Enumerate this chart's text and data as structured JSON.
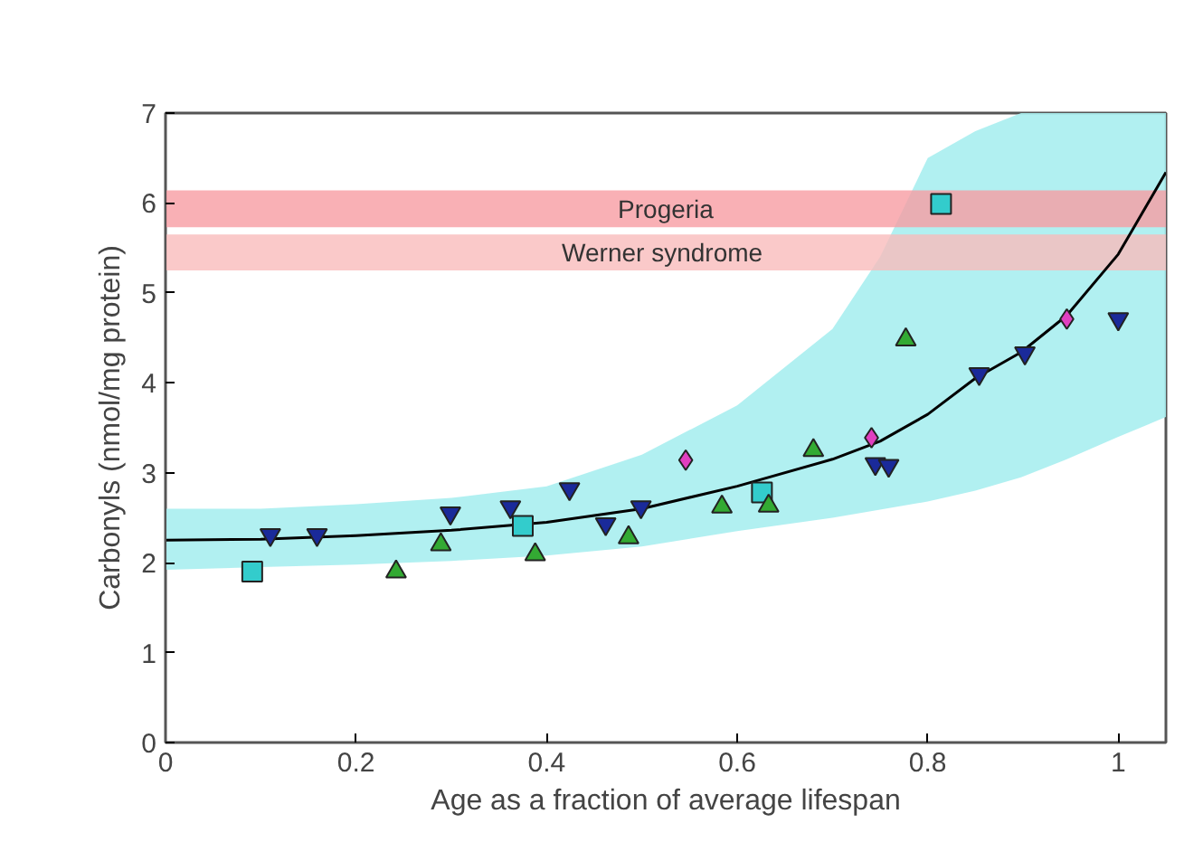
{
  "chart_data": {
    "type": "scatter",
    "xlabel": "Age as a fraction of average lifespan",
    "ylabel": "Carbonyls (nmol/mg protein)",
    "xlim": [
      0,
      1.05
    ],
    "xticks": [
      0,
      0.2,
      0.4,
      0.6,
      0.8,
      1
    ],
    "ylim": [
      0,
      7
    ],
    "yticks": [
      0,
      1,
      2,
      3,
      4,
      5,
      6,
      7
    ],
    "grid": false,
    "series": [
      {
        "type": "line",
        "color": "#000000",
        "line_style": "solid",
        "marker": "none",
        "x": [
          0,
          0.1,
          0.2,
          0.3,
          0.4,
          0.5,
          0.6,
          0.7,
          0.75,
          0.8,
          0.85,
          0.898,
          0.946,
          1.0,
          1.05
        ],
        "values": [
          2.25,
          2.26,
          2.3,
          2.36,
          2.45,
          2.6,
          2.85,
          3.15,
          3.35,
          3.65,
          4.05,
          4.34,
          4.75,
          5.43,
          6.34
        ],
        "lower": [
          1.92,
          1.95,
          1.98,
          2.02,
          2.08,
          2.18,
          2.35,
          2.5,
          2.59,
          2.68,
          2.8,
          2.95,
          3.15,
          3.4,
          3.62
        ],
        "upper": [
          2.6,
          2.6,
          2.65,
          2.72,
          2.85,
          3.2,
          3.75,
          4.6,
          5.4,
          6.5,
          6.8,
          7,
          7,
          7,
          7
        ]
      },
      {
        "marker": "square",
        "color": "#33cccc",
        "x": [
          0.091,
          0.375,
          0.626,
          0.814
        ],
        "values": [
          1.9,
          2.41,
          2.78,
          5.99
        ]
      },
      {
        "color": "#1a2a9a",
        "x": [
          0.11,
          0.159,
          0.299,
          0.362,
          0.424,
          0.462,
          0.499,
          0.745,
          0.759,
          0.854,
          0.902,
          1.0
        ],
        "values": [
          2.31,
          2.31,
          2.55,
          2.62,
          2.82,
          2.43,
          2.62,
          3.1,
          3.08,
          4.1,
          4.33,
          4.71
        ]
      },
      {
        "marker": "triangle",
        "color": "#33aa33",
        "x": [
          0.242,
          0.289,
          0.388,
          0.486,
          0.584,
          0.633,
          0.68,
          0.777
        ],
        "values": [
          1.9,
          2.2,
          2.09,
          2.28,
          2.62,
          2.63,
          3.25,
          4.48
        ]
      },
      {
        "marker": "diamond",
        "color": "#e040c0",
        "x": [
          0.546,
          0.741,
          0.946
        ],
        "values": [
          3.14,
          3.39,
          4.71
        ]
      }
    ],
    "bands": [
      {
        "axis": "y",
        "from": 5.73,
        "to": 6.14,
        "label": "Progeria",
        "color": "#f79ca2"
      },
      {
        "axis": "y",
        "from": 5.25,
        "to": 5.65,
        "label": "Werner  syndrome",
        "color": "#f9bcbc"
      }
    ]
  }
}
